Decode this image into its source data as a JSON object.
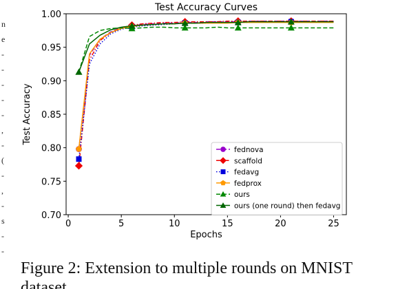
{
  "caption": {
    "line1": "Figure 2: Extension to multiple rounds on MNIST",
    "line2": "dataset."
  },
  "left_margin": {
    "marks": [
      "n",
      "e",
      "-",
      "-",
      "-",
      "-",
      "-",
      ",",
      "-",
      "(",
      "-",
      ",",
      "-",
      "s",
      "-",
      "-"
    ]
  },
  "chart_data": {
    "type": "line",
    "title": "Test Accuracy Curves",
    "xlabel": "Epochs",
    "ylabel": "Test Accuracy",
    "xlim": [
      -0.2,
      26.2
    ],
    "ylim": [
      0.7,
      1.0
    ],
    "xticks": [
      0,
      5,
      10,
      15,
      20,
      25
    ],
    "yticks": [
      0.7,
      0.75,
      0.8,
      0.85,
      0.9,
      0.95,
      1.0
    ],
    "ytick_labels": [
      "0.70",
      "0.75",
      "0.80",
      "0.85",
      "0.90",
      "0.95",
      "1.00"
    ],
    "grid": false,
    "legend_position": "lower-right",
    "series": [
      {
        "name": "fednova",
        "color": "#9900cc",
        "linestyle": "dashed",
        "marker": "circle",
        "x": [
          1,
          2,
          3,
          4,
          5,
          6,
          7,
          8,
          9,
          10,
          11,
          12,
          13,
          14,
          15,
          16,
          17,
          18,
          19,
          20,
          21,
          22,
          23,
          24,
          25
        ],
        "y": [
          0.798,
          0.938,
          0.962,
          0.973,
          0.979,
          0.982,
          0.984,
          0.985,
          0.986,
          0.986,
          0.987,
          0.987,
          0.988,
          0.988,
          0.988,
          0.988,
          0.989,
          0.989,
          0.989,
          0.989,
          0.989,
          0.989,
          0.989,
          0.989,
          0.989
        ],
        "marker_x": [
          1,
          6,
          11,
          16,
          21
        ]
      },
      {
        "name": "scaffold",
        "color": "#ee0000",
        "linestyle": "dashdot",
        "marker": "diamond",
        "x": [
          1,
          2,
          3,
          4,
          5,
          6,
          7,
          8,
          9,
          10,
          11,
          12,
          13,
          14,
          15,
          16,
          17,
          18,
          19,
          20,
          21,
          22,
          23,
          24,
          25
        ],
        "y": [
          0.773,
          0.931,
          0.96,
          0.972,
          0.979,
          0.983,
          0.985,
          0.986,
          0.987,
          0.987,
          0.988,
          0.988,
          0.988,
          0.988,
          0.989,
          0.989,
          0.989,
          0.989,
          0.989,
          0.989,
          0.989,
          0.989,
          0.989,
          0.989,
          0.989
        ],
        "marker_x": [
          1,
          6,
          11,
          16,
          21
        ]
      },
      {
        "name": "fedavg",
        "color": "#0000dd",
        "linestyle": "dotted",
        "marker": "square",
        "x": [
          1,
          2,
          3,
          4,
          5,
          6,
          7,
          8,
          9,
          10,
          11,
          12,
          13,
          14,
          15,
          16,
          17,
          18,
          19,
          20,
          21,
          22,
          23,
          24,
          25
        ],
        "y": [
          0.783,
          0.925,
          0.955,
          0.97,
          0.977,
          0.98,
          0.982,
          0.983,
          0.984,
          0.985,
          0.986,
          0.986,
          0.986,
          0.987,
          0.987,
          0.987,
          0.987,
          0.988,
          0.988,
          0.988,
          0.988,
          0.988,
          0.988,
          0.988,
          0.988
        ],
        "marker_x": [
          1,
          6,
          11,
          16,
          21
        ]
      },
      {
        "name": "fedprox",
        "color": "#ff9900",
        "linestyle": "solid",
        "marker": "pentagon",
        "x": [
          1,
          2,
          3,
          4,
          5,
          6,
          7,
          8,
          9,
          10,
          11,
          12,
          13,
          14,
          15,
          16,
          17,
          18,
          19,
          20,
          21,
          22,
          23,
          24,
          25
        ],
        "y": [
          0.798,
          0.94,
          0.962,
          0.972,
          0.978,
          0.981,
          0.983,
          0.984,
          0.985,
          0.985,
          0.986,
          0.986,
          0.986,
          0.986,
          0.986,
          0.987,
          0.987,
          0.987,
          0.987,
          0.987,
          0.987,
          0.987,
          0.987,
          0.987,
          0.987
        ],
        "marker_x": [
          1,
          6,
          11,
          16,
          21
        ]
      },
      {
        "name": "ours",
        "color": "#008800",
        "linestyle": "dashed",
        "marker": "triangle",
        "x": [
          1,
          2,
          3,
          4,
          5,
          6,
          7,
          8,
          9,
          10,
          11,
          12,
          13,
          14,
          15,
          16,
          17,
          18,
          19,
          20,
          21,
          22,
          23,
          24,
          25
        ],
        "y": [
          0.913,
          0.966,
          0.975,
          0.978,
          0.979,
          0.978,
          0.979,
          0.98,
          0.98,
          0.979,
          0.979,
          0.979,
          0.979,
          0.98,
          0.979,
          0.979,
          0.979,
          0.979,
          0.979,
          0.979,
          0.979,
          0.979,
          0.979,
          0.979,
          0.979
        ],
        "marker_x": [
          1,
          6,
          11,
          16,
          21
        ]
      },
      {
        "name": "ours (one round) then fedavg",
        "color": "#006600",
        "linestyle": "solid",
        "marker": "triangle",
        "x": [
          1,
          2,
          3,
          4,
          5,
          6,
          7,
          8,
          9,
          10,
          11,
          12,
          13,
          14,
          15,
          16,
          17,
          18,
          19,
          20,
          21,
          22,
          23,
          24,
          25
        ],
        "y": [
          0.913,
          0.955,
          0.968,
          0.976,
          0.98,
          0.982,
          0.983,
          0.984,
          0.985,
          0.985,
          0.986,
          0.986,
          0.987,
          0.987,
          0.987,
          0.987,
          0.988,
          0.988,
          0.988,
          0.988,
          0.988,
          0.988,
          0.988,
          0.988,
          0.988
        ],
        "marker_x": [
          1,
          6,
          11,
          16,
          21
        ]
      }
    ]
  }
}
